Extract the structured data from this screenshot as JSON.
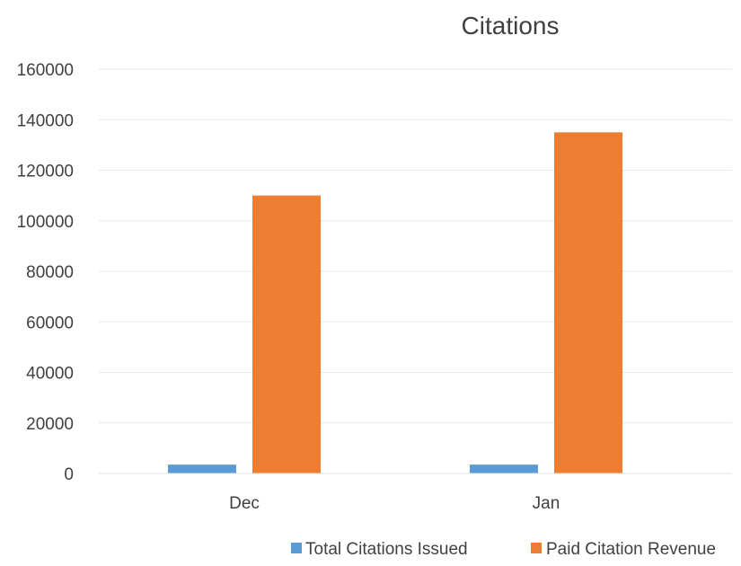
{
  "chart_data": {
    "type": "bar",
    "title": "Citations",
    "categories": [
      "Dec",
      "Jan"
    ],
    "series": [
      {
        "name": "Total Citations Issued",
        "values": [
          3500,
          3500
        ],
        "color": "#5B9BD5"
      },
      {
        "name": "Paid Citation Revenue",
        "values": [
          110000,
          135000
        ],
        "color": "#ED7D31"
      }
    ],
    "y_ticks": [
      "0",
      "20000",
      "40000",
      "60000",
      "80000",
      "100000",
      "120000",
      "140000",
      "160000"
    ],
    "ylim": [
      0,
      160000
    ],
    "grid": true,
    "legend": "bottom-right"
  }
}
